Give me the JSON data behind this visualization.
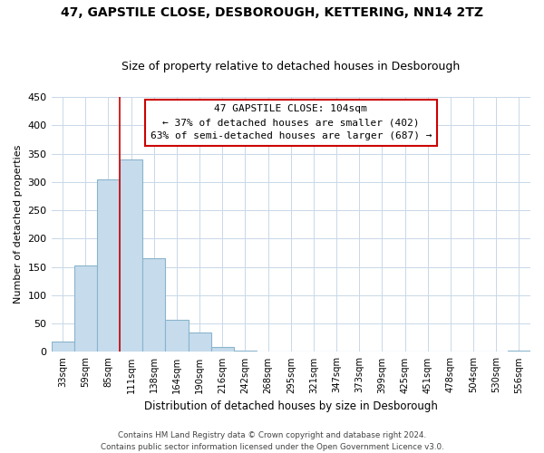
{
  "title": "47, GAPSTILE CLOSE, DESBOROUGH, KETTERING, NN14 2TZ",
  "subtitle": "Size of property relative to detached houses in Desborough",
  "xlabel": "Distribution of detached houses by size in Desborough",
  "ylabel": "Number of detached properties",
  "bar_labels": [
    "33sqm",
    "59sqm",
    "85sqm",
    "111sqm",
    "138sqm",
    "164sqm",
    "190sqm",
    "216sqm",
    "242sqm",
    "268sqm",
    "295sqm",
    "321sqm",
    "347sqm",
    "373sqm",
    "399sqm",
    "425sqm",
    "451sqm",
    "478sqm",
    "504sqm",
    "530sqm",
    "556sqm"
  ],
  "bar_values": [
    18,
    153,
    305,
    340,
    165,
    57,
    35,
    9,
    2,
    0,
    0,
    1,
    0,
    0,
    0,
    0,
    0,
    0,
    0,
    0,
    3
  ],
  "bar_color": "#c6dcec",
  "bar_edge_color": "#8ab4cc",
  "vline_x_index": 2.5,
  "vline_color": "#cc0000",
  "ylim": [
    0,
    450
  ],
  "yticks": [
    0,
    50,
    100,
    150,
    200,
    250,
    300,
    350,
    400,
    450
  ],
  "annotation_line1": "47 GAPSTILE CLOSE: 104sqm",
  "annotation_line2": "← 37% of detached houses are smaller (402)",
  "annotation_line3": "63% of semi-detached houses are larger (687) →",
  "annotation_box_color": "#ffffff",
  "annotation_box_edge": "#cc0000",
  "footer_line1": "Contains HM Land Registry data © Crown copyright and database right 2024.",
  "footer_line2": "Contains public sector information licensed under the Open Government Licence v3.0.",
  "background_color": "#ffffff",
  "grid_color": "#c8d8e8",
  "title_fontsize": 10,
  "subtitle_fontsize": 9
}
